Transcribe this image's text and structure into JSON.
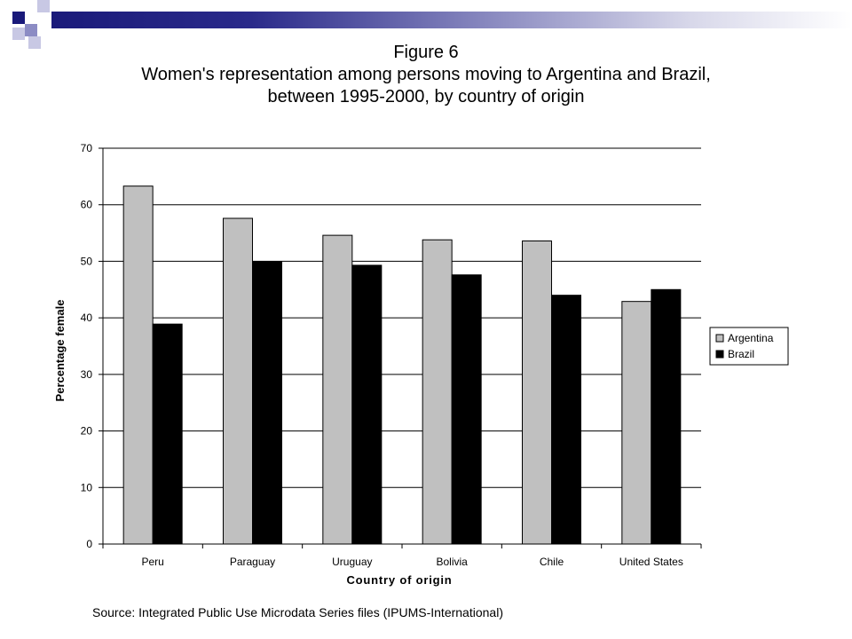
{
  "slide": {
    "figure_label": "Figure 6",
    "title_line1": "Women's representation among persons moving to Argentina and Brazil,",
    "title_line2": "between 1995-2000,  by country of origin",
    "source": "Source: Integrated Public Use Microdata Series files (IPUMS-International)"
  },
  "colors": {
    "banner_dark": "#1a1a7a",
    "banner_mid": "#8a8ac0",
    "argentina": "#c0c0c0",
    "brazil": "#000000"
  },
  "chart_data": {
    "type": "bar",
    "title": "",
    "xlabel": "Country of origin",
    "ylabel": "Percentage female",
    "ylim": [
      0,
      70
    ],
    "yticks": [
      0,
      10,
      20,
      30,
      40,
      50,
      60,
      70
    ],
    "grid": true,
    "legend_position": "right",
    "categories": [
      "Peru",
      "Paraguay",
      "Uruguay",
      "Bolivia",
      "Chile",
      "United States"
    ],
    "series": [
      {
        "name": "Argentina",
        "color": "#c0c0c0",
        "values": [
          63.3,
          57.6,
          54.6,
          53.8,
          53.6,
          42.9
        ]
      },
      {
        "name": "Brazil",
        "color": "#000000",
        "values": [
          38.9,
          49.9,
          49.3,
          47.6,
          44.0,
          45.0
        ]
      }
    ]
  }
}
